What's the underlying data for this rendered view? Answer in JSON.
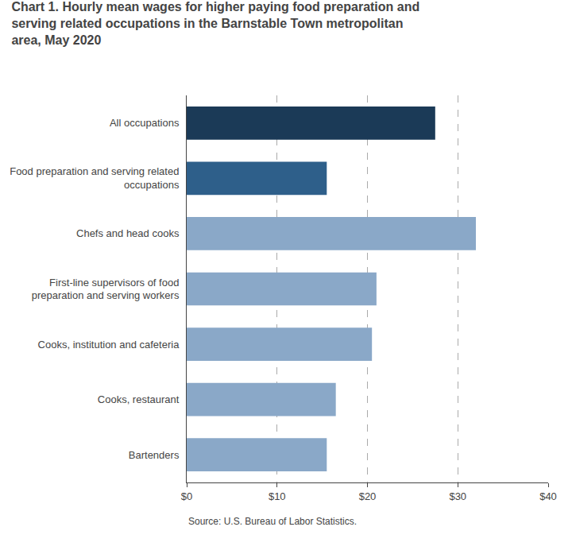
{
  "chart_data": {
    "type": "bar",
    "orientation": "horizontal",
    "title": "Chart 1. Hourly mean wages for higher paying food preparation and\nserving related occupations in the Barnstable Town metropolitan\narea, May 2020",
    "categories": [
      "Bartenders",
      "Cooks, restaurant",
      "Cooks, institution and cafeteria",
      "First-line supervisors of food\npreparation and serving workers",
      "Chefs and head cooks",
      "Food preparation and serving related\noccupations",
      "All occupations"
    ],
    "values": [
      15.5,
      16.5,
      20.5,
      21.0,
      32.0,
      15.5,
      27.5
    ],
    "colors": [
      "#8aa8c8",
      "#8aa8c8",
      "#8aa8c8",
      "#8aa8c8",
      "#8aa8c8",
      "#2e5f8a",
      "#1b3a57"
    ],
    "xlim": [
      0,
      40
    ],
    "xticks": [
      {
        "value": 0,
        "label": "$0"
      },
      {
        "value": 10,
        "label": "$10"
      },
      {
        "value": 20,
        "label": "$20"
      },
      {
        "value": 30,
        "label": "$30"
      },
      {
        "value": 40,
        "label": "$40"
      }
    ],
    "grid": true,
    "annotations": [
      "Source: U.S. Bureau of Labor Statistics."
    ]
  }
}
